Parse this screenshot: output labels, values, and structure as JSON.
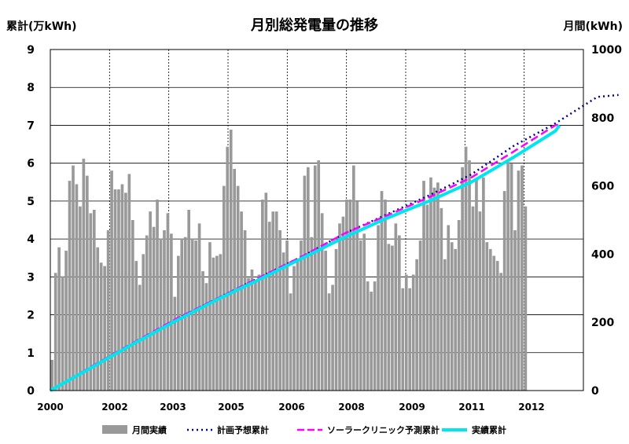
{
  "chart_data": {
    "type": "bar",
    "title": "月別総発電量の推移",
    "ylabel_left": "累計(万kWh)",
    "ylabel_right": "月間(kWh)",
    "ylim_left": [
      0,
      9
    ],
    "ylim_right": [
      0,
      1000
    ],
    "yticks_left": [
      "0",
      "1",
      "2",
      "3",
      "4",
      "5",
      "6",
      "7",
      "8",
      "9"
    ],
    "yticks_right": [
      "0",
      "200",
      "400",
      "600",
      "800",
      "1000"
    ],
    "xtick_labels": [
      "2000",
      "2002",
      "2003",
      "2005",
      "2006",
      "2008",
      "2009",
      "2011",
      "2012"
    ],
    "grid": true,
    "legend_position": "bottom",
    "series": [
      {
        "name": "月間実績",
        "kind": "bar",
        "axis": "right",
        "color": "#999999",
        "start_month": "2000-01",
        "values": [
          90,
          345,
          420,
          335,
          410,
          615,
          660,
          605,
          540,
          680,
          630,
          520,
          530,
          420,
          375,
          365,
          470,
          645,
          590,
          590,
          605,
          580,
          635,
          500,
          380,
          310,
          400,
          455,
          525,
          480,
          560,
          445,
          470,
          520,
          460,
          275,
          395,
          445,
          450,
          530,
          445,
          440,
          490,
          350,
          315,
          435,
          390,
          395,
          400,
          600,
          715,
          765,
          650,
          600,
          525,
          470,
          330,
          355,
          320,
          340,
          560,
          580,
          495,
          525,
          525,
          470,
          405,
          440,
          285,
          365,
          385,
          440,
          630,
          655,
          450,
          660,
          675,
          520,
          410,
          285,
          310,
          415,
          490,
          510,
          560,
          560,
          660,
          555,
          440,
          460,
          320,
          290,
          320,
          485,
          585,
          560,
          430,
          425,
          490,
          455,
          300,
          340,
          300,
          340,
          385,
          440,
          615,
          545,
          625,
          595,
          610,
          535,
          385,
          485,
          435,
          415,
          500,
          655,
          715,
          675,
          540,
          620,
          525,
          625,
          435,
          415,
          395,
          380,
          345,
          585,
          670,
          665,
          470,
          645,
          660,
          540
        ]
      },
      {
        "name": "計画予想累計",
        "kind": "line",
        "axis": "left",
        "color": "#00008b",
        "dash": "dotted",
        "points": [
          [
            0,
            0
          ],
          [
            1,
            0.62
          ],
          [
            2,
            1.25
          ],
          [
            3,
            1.88
          ],
          [
            4,
            2.45
          ],
          [
            5,
            3.0
          ],
          [
            6,
            3.55
          ],
          [
            7,
            4.15
          ],
          [
            8,
            4.65
          ],
          [
            9,
            5.15
          ],
          [
            10,
            5.7
          ],
          [
            11,
            6.45
          ],
          [
            12,
            7.05
          ],
          [
            13,
            7.75
          ],
          [
            13.5,
            7.8
          ]
        ]
      },
      {
        "name": "ソーラークリニック予測累計",
        "kind": "line",
        "axis": "left",
        "color": "#ff00ff",
        "dash": "dashed",
        "points": [
          [
            0,
            0
          ],
          [
            1,
            0.65
          ],
          [
            2,
            1.28
          ],
          [
            3,
            1.9
          ],
          [
            4,
            2.45
          ],
          [
            5,
            3.0
          ],
          [
            6,
            3.55
          ],
          [
            7,
            4.15
          ],
          [
            8,
            4.62
          ],
          [
            9,
            5.1
          ],
          [
            10,
            5.62
          ],
          [
            11,
            6.3
          ],
          [
            12,
            7.0
          ],
          [
            12.1,
            7.02
          ]
        ]
      },
      {
        "name": "実績累計",
        "kind": "line",
        "axis": "left",
        "color": "#00e5ee",
        "dash": "solid",
        "points": [
          [
            0,
            0
          ],
          [
            1,
            0.62
          ],
          [
            2,
            1.25
          ],
          [
            3,
            1.85
          ],
          [
            4,
            2.42
          ],
          [
            5,
            2.95
          ],
          [
            6,
            3.5
          ],
          [
            7,
            4.05
          ],
          [
            8,
            4.55
          ],
          [
            9,
            5.0
          ],
          [
            10,
            5.5
          ],
          [
            11,
            6.15
          ],
          [
            12,
            6.85
          ],
          [
            12.1,
            7.0
          ]
        ]
      }
    ]
  }
}
